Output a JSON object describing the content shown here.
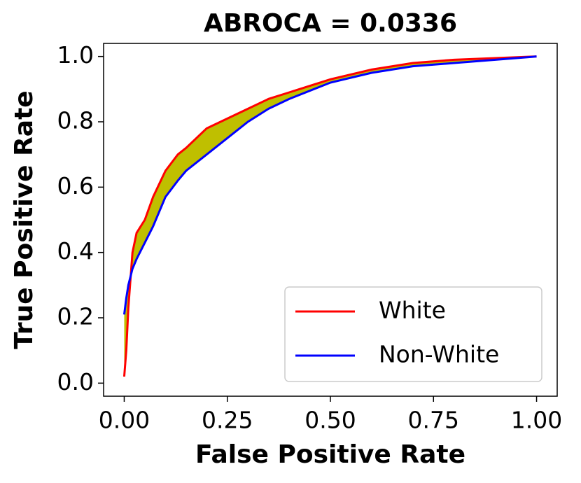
{
  "chart_data": {
    "type": "line",
    "title": "ABROCA = 0.0336",
    "x_label": "False Positive Rate",
    "y_label": "True Positive Rate",
    "x": [
      0,
      0.005,
      0.01,
      0.02,
      0.03,
      0.05,
      0.07,
      0.1,
      0.13,
      0.15,
      0.2,
      0.25,
      0.3,
      0.35,
      0.4,
      0.5,
      0.6,
      0.7,
      0.8,
      0.9,
      1.0
    ],
    "series": [
      {
        "name": "White",
        "color": "#ff0000",
        "values": [
          0.02,
          0.1,
          0.23,
          0.4,
          0.46,
          0.5,
          0.57,
          0.65,
          0.7,
          0.72,
          0.78,
          0.81,
          0.84,
          0.87,
          0.89,
          0.93,
          0.96,
          0.98,
          0.99,
          0.995,
          1.0
        ]
      },
      {
        "name": "Non-White",
        "color": "#0000ff",
        "values": [
          0.21,
          0.26,
          0.3,
          0.35,
          0.38,
          0.43,
          0.48,
          0.57,
          0.62,
          0.65,
          0.7,
          0.75,
          0.8,
          0.84,
          0.87,
          0.92,
          0.95,
          0.97,
          0.98,
          0.99,
          1.0
        ]
      }
    ],
    "fill_between_color": "#bfbf00",
    "xlim": [
      -0.05,
      1.05
    ],
    "xticks": [
      {
        "value": 0,
        "label": "0.00"
      },
      {
        "value": 0.25,
        "label": "0.25"
      },
      {
        "value": 0.5,
        "label": "0.50"
      },
      {
        "value": 0.75,
        "label": "0.75"
      },
      {
        "value": 1,
        "label": "1.00"
      }
    ],
    "ylim": [
      -0.04,
      1.04
    ],
    "yticks": [
      {
        "value": 0,
        "label": "0.0"
      },
      {
        "value": 0.2,
        "label": "0.2"
      },
      {
        "value": 0.4,
        "label": "0.4"
      },
      {
        "value": 0.6,
        "label": "0.6"
      },
      {
        "value": 0.8,
        "label": "0.8"
      },
      {
        "value": 1,
        "label": "1.0"
      }
    ],
    "grid": false,
    "legend": "lower right"
  }
}
